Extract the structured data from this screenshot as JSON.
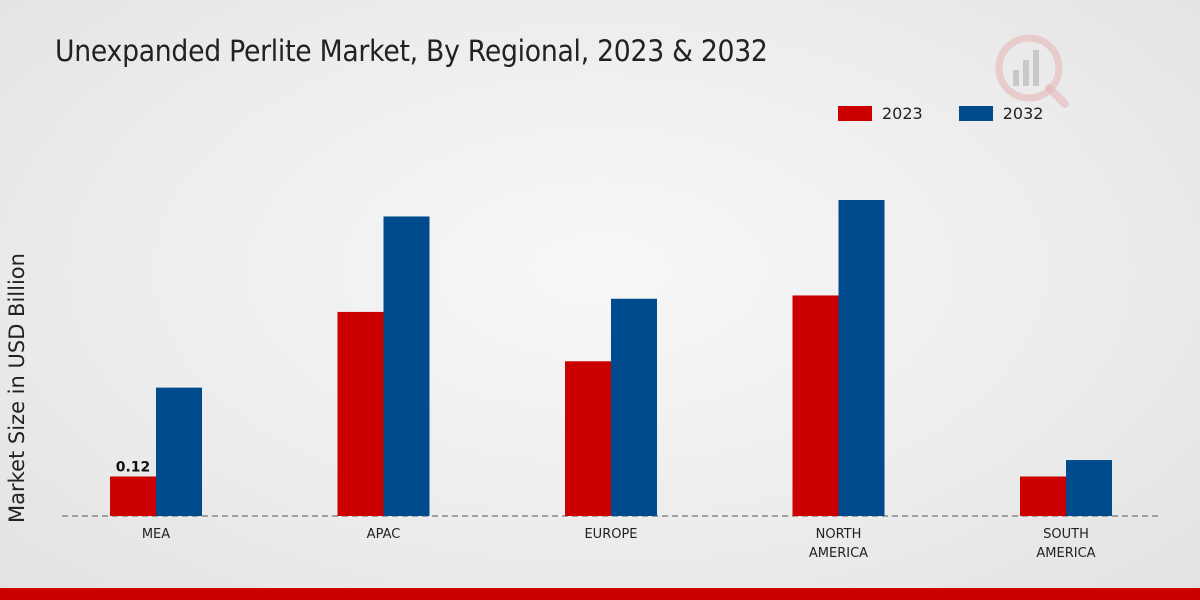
{
  "chart_data": {
    "type": "bar",
    "title": "Unexpanded Perlite Market, By Regional, 2023 & 2032",
    "ylabel": "Market Size in USD Billion",
    "xlabel": "",
    "categories": [
      "MEA",
      "APAC",
      "EUROPE",
      "NORTH\nAMERICA",
      "SOUTH\nAMERICA"
    ],
    "series": [
      {
        "name": "2023",
        "color": "#cc0000",
        "values": [
          0.12,
          0.62,
          0.47,
          0.67,
          0.12
        ]
      },
      {
        "name": "2032",
        "color": "#004b8d",
        "values": [
          0.39,
          0.91,
          0.66,
          0.96,
          0.17
        ]
      }
    ],
    "data_labels": [
      {
        "series": "2023",
        "category": "MEA",
        "text": "0.12"
      }
    ],
    "ylim": [
      0,
      1.2
    ],
    "grid": false,
    "legend_position": "top-right"
  }
}
